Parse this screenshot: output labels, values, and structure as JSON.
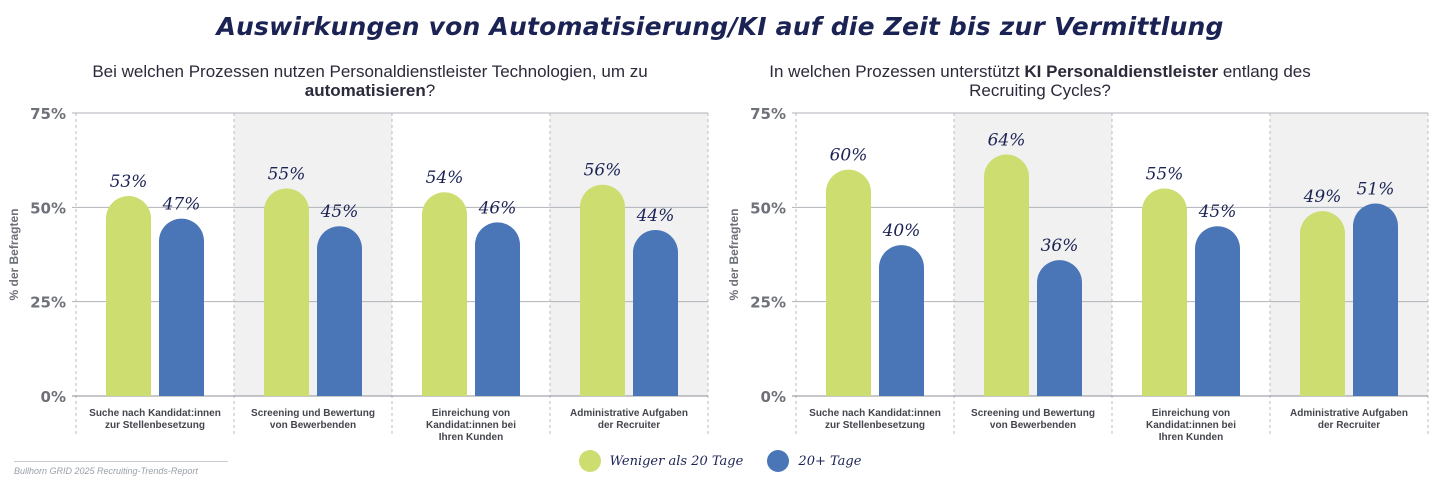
{
  "title": "Auswirkungen von Automatisierung/KI auf die Zeit bis zur Vermittlung",
  "colors": {
    "green": "#cddd70",
    "blue": "#4a76b7",
    "navy": "#1b2354",
    "band": "#f1f1f1"
  },
  "legend": {
    "series_a": "Weniger als 20 Tage",
    "series_b": "20+ Tage"
  },
  "source": "Bullhorn GRID 2025 Recruiting-Trends-Report",
  "chart_data": [
    {
      "type": "bar",
      "title_pre": "Bei welchen Prozessen nutzen Personaldienstleister Technologien, um zu ",
      "title_bold": "automatisieren",
      "title_post": "?",
      "ylabel": "% der Befragten",
      "ylim": [
        0,
        75
      ],
      "yticks": [
        "0%",
        "25%",
        "50%",
        "75%"
      ],
      "categories": [
        [
          "Suche nach Kandidat:innen",
          "zur Stellenbesetzung"
        ],
        [
          "Screening und Bewertung",
          "von Bewerbenden"
        ],
        [
          "Einreichung von",
          "Kandidat:innen bei",
          "Ihren Kunden"
        ],
        [
          "Administrative Aufgaben",
          "der Recruiter"
        ]
      ],
      "series": [
        {
          "name": "Weniger als 20 Tage",
          "values": [
            53,
            55,
            54,
            56
          ],
          "labels": [
            "53%",
            "55%",
            "54%",
            "56%"
          ]
        },
        {
          "name": "20+ Tage",
          "values": [
            47,
            45,
            46,
            44
          ],
          "labels": [
            "47%",
            "45%",
            "46%",
            "44%"
          ]
        }
      ]
    },
    {
      "type": "bar",
      "title_pre": "In welchen Prozessen unterstützt ",
      "title_bold": "KI Personaldienstleister",
      "title_post": " entlang des Recruiting Cycles?",
      "ylabel": "% der Befragten",
      "ylim": [
        0,
        75
      ],
      "yticks": [
        "0%",
        "25%",
        "50%",
        "75%"
      ],
      "categories": [
        [
          "Suche nach Kandidat:innen",
          "zur Stellenbesetzung"
        ],
        [
          "Screening und Bewertung",
          "von Bewerbenden"
        ],
        [
          "Einreichung von",
          "Kandidat:innen bei",
          "Ihren Kunden"
        ],
        [
          "Administrative Aufgaben",
          "der Recruiter"
        ]
      ],
      "series": [
        {
          "name": "Weniger als 20 Tage",
          "values": [
            60,
            64,
            55,
            49
          ],
          "labels": [
            "60%",
            "64%",
            "55%",
            "49%"
          ]
        },
        {
          "name": "20+ Tage",
          "values": [
            40,
            36,
            45,
            51
          ],
          "labels": [
            "40%",
            "36%",
            "45%",
            "51%"
          ]
        }
      ]
    }
  ]
}
